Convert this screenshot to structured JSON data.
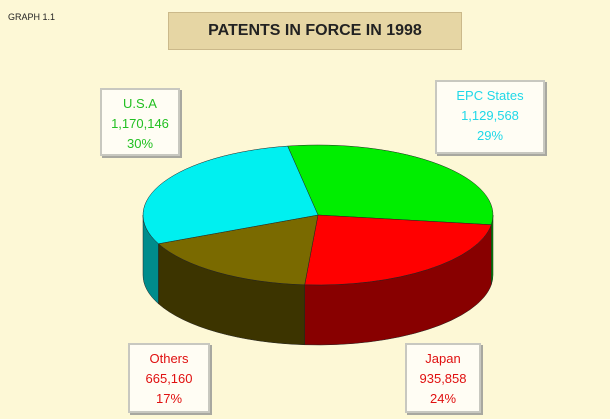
{
  "chart_data": {
    "type": "pie3d",
    "corner_label": "GRAPH 1.1",
    "title": "PATENTS IN FORCE IN 1998",
    "categories": [
      "U.S.A",
      "Japan",
      "Others",
      "EPC States"
    ],
    "values": [
      1170146,
      935858,
      665160,
      1129568
    ],
    "value_labels": [
      "1,170,146",
      "935,858",
      "665,160",
      "1,129,568"
    ],
    "shares": [
      30,
      24,
      17,
      29
    ],
    "share_labels": [
      "30%",
      "24%",
      "17%",
      "29%"
    ],
    "colors": [
      "#00ee00",
      "#ff0000",
      "#7a6a00",
      "#00f0f0"
    ],
    "side_colors": [
      "#009000",
      "#880000",
      "#3c3400",
      "#008c8c"
    ],
    "label_colors": [
      "#22c022",
      "#e01010",
      "#e01010",
      "#20d8e8"
    ]
  }
}
